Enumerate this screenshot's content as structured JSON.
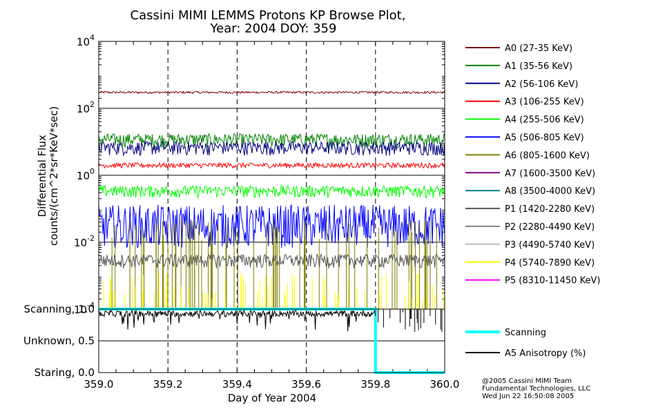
{
  "chart_data": {
    "type": "line",
    "title": [
      "Cassini MIMI LEMMS Protons KP Browse Plot,",
      "Year: 2004 DOY: 359"
    ],
    "xlabel": "Day of Year 2004",
    "xlim": [
      359.0,
      360.0
    ],
    "x_ticks": [
      "359.0",
      "359.2",
      "359.4",
      "359.6",
      "359.8",
      "360.0"
    ],
    "upper_panel": {
      "ylabel": [
        "Differential Flux",
        "counts/(cm^2*sr*KeV*sec)"
      ],
      "scale": "log",
      "ylim": [
        0.0001,
        10000
      ],
      "y_ticks": [
        {
          "base": "10",
          "exp": "4",
          "value": 10000
        },
        {
          "base": "10",
          "exp": "2",
          "value": 100
        },
        {
          "base": "10",
          "exp": "0",
          "value": 1
        },
        {
          "base": "10",
          "exp": "-2",
          "value": 0.01
        },
        {
          "base": "10",
          "exp": "-4",
          "value": 0.0001
        }
      ],
      "series": [
        {
          "name": "A0 (27-35 KeV)",
          "color": "#800000",
          "level": 300
        },
        {
          "name": "A1 (35-56 KeV)",
          "color": "#008000",
          "level": 12
        },
        {
          "name": "A2 (56-106 KeV)",
          "color": "#000080",
          "level": 7
        },
        {
          "name": "A3 (106-255 KeV)",
          "color": "#ff0000",
          "level": 2
        },
        {
          "name": "A4 (255-506 KeV)",
          "color": "#00ff00",
          "level": 0.35
        },
        {
          "name": "A5 (506-805 KeV)",
          "color": "#0000ff",
          "level": 0.04
        },
        {
          "name": "A6 (805-1600 KeV)",
          "color": "#808000",
          "level": 0.02
        },
        {
          "name": "A7 (1600-3500 KeV)",
          "color": "#800080",
          "level": null
        },
        {
          "name": "A8 (3500-4000 KeV)",
          "color": "#008080",
          "level": null
        },
        {
          "name": "P1 (1420-2280 KeV)",
          "color": "#555555",
          "level": 0.003
        },
        {
          "name": "P2 (2280-4490 KeV)",
          "color": "#888888",
          "level": null
        },
        {
          "name": "P3 (4490-5740 KeV)",
          "color": "#c0c0c0",
          "level": null
        },
        {
          "name": "P4 (5740-7890 KeV)",
          "color": "#ffff00",
          "level": 0.0002
        },
        {
          "name": "P5 (8310-11450 KeV)",
          "color": "#ff00ff",
          "level": null
        }
      ]
    },
    "lower_panel": {
      "ylim": [
        0.0,
        1.0
      ],
      "y_ticks": [
        {
          "label": "Scanning, 1.0",
          "value": 1.0
        },
        {
          "label": "Unknown, 0.5",
          "value": 0.5
        },
        {
          "label": "Staring, 0.0",
          "value": 0.0
        }
      ],
      "series": [
        {
          "name": "Scanning",
          "color": "#00ffff",
          "points": [
            [
              359.0,
              1.0
            ],
            [
              359.8,
              1.0
            ],
            [
              359.8,
              0.0
            ],
            [
              360.0,
              0.0
            ]
          ]
        },
        {
          "name": "A5 Anisotropy (%)",
          "color": "#000000",
          "level": 0.93
        }
      ]
    }
  },
  "footer": [
    "@2005 Cassini MIMI Team",
    "Fundamental Technologies, LLC",
    "Wed Jun 22 16:50:08 2005"
  ]
}
